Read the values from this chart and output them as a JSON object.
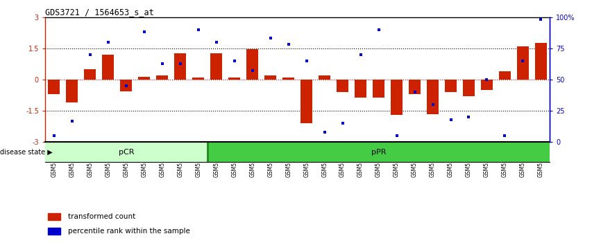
{
  "title": "GDS3721 / 1564653_s_at",
  "samples": [
    "GSM559062",
    "GSM559063",
    "GSM559064",
    "GSM559065",
    "GSM559066",
    "GSM559067",
    "GSM559068",
    "GSM559069",
    "GSM559042",
    "GSM559043",
    "GSM559044",
    "GSM559045",
    "GSM559046",
    "GSM559047",
    "GSM559048",
    "GSM559049",
    "GSM559050",
    "GSM559051",
    "GSM559052",
    "GSM559053",
    "GSM559054",
    "GSM559055",
    "GSM559056",
    "GSM559057",
    "GSM559058",
    "GSM559059",
    "GSM559060",
    "GSM559061"
  ],
  "bar_values": [
    -0.7,
    -1.1,
    0.5,
    1.2,
    -0.55,
    0.15,
    0.2,
    1.25,
    0.1,
    1.25,
    0.1,
    1.45,
    0.2,
    0.1,
    -2.1,
    0.2,
    -0.6,
    -0.85,
    -0.85,
    -1.7,
    -0.7,
    -1.65,
    -0.6,
    -0.8,
    -0.5,
    0.4,
    1.6,
    1.75
  ],
  "percentile_values": [
    5,
    17,
    70,
    80,
    45,
    88,
    63,
    63,
    90,
    80,
    65,
    57,
    83,
    78,
    65,
    8,
    15,
    70,
    90,
    5,
    40,
    30,
    18,
    20,
    50,
    5,
    65,
    98
  ],
  "pCR_count": 9,
  "pPR_count": 19,
  "bar_color": "#cc2200",
  "dot_color": "#0000cc",
  "pCR_color": "#ccffcc",
  "pPR_color": "#44cc44",
  "ylim": [
    -3,
    3
  ],
  "right_ylim": [
    0,
    100
  ],
  "right_yticks": [
    0,
    25,
    50,
    75,
    100
  ],
  "right_yticklabels": [
    "0",
    "25",
    "50",
    "75",
    "100%"
  ],
  "left_yticks": [
    -3,
    -1.5,
    0,
    1.5,
    3
  ],
  "left_yticklabels": [
    "-3",
    "-1.5",
    "0",
    "1.5",
    "3"
  ],
  "dotted_lines": [
    1.5,
    -1.5
  ],
  "zero_line_color": "#cc0000",
  "legend_bar_label": "transformed count",
  "legend_dot_label": "percentile rank within the sample",
  "disease_state_label": "disease state",
  "pCR_label": "pCR",
  "pPR_label": "pPR"
}
